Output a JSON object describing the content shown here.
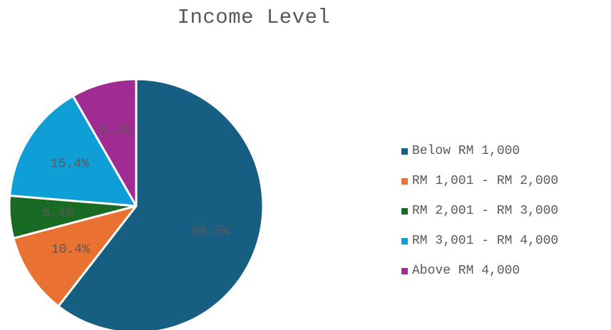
{
  "chart_data": {
    "type": "pie",
    "title": "Income Level",
    "slices": [
      {
        "label": "Below RM 1,000",
        "value": 60.5,
        "data_label": "60.5%",
        "color": "#175E83"
      },
      {
        "label": "RM 1,001 - RM 2,000",
        "value": 10.4,
        "data_label": "10.4%",
        "color": "#E97132"
      },
      {
        "label": "RM 2,001 - RM 3,000",
        "value": 5.4,
        "data_label": "5.4%",
        "color": "#196B24"
      },
      {
        "label": "RM 3,001 - RM 4,000",
        "value": 15.4,
        "data_label": "15.4%",
        "color": "#0F9ED5"
      },
      {
        "label": "Above RM 4,000",
        "value": 8.3,
        "data_label": "8.3%",
        "color": "#A02B93"
      }
    ],
    "legend_position": "right",
    "label_color": "#595959"
  }
}
